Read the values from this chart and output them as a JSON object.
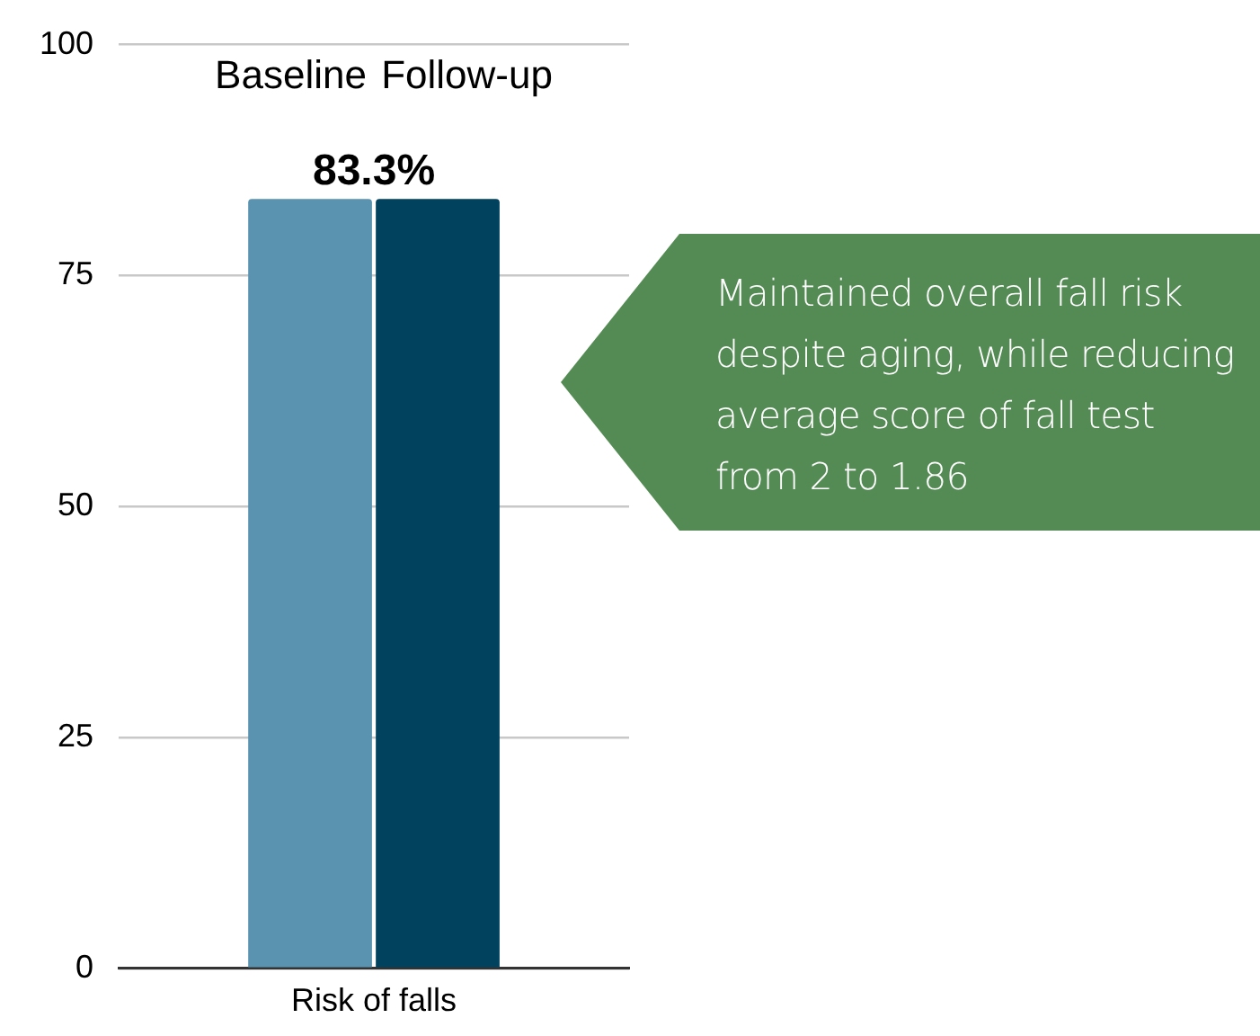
{
  "chart_data": {
    "type": "bar",
    "categories": [
      "Risk of falls"
    ],
    "series": [
      {
        "name": "Baseline",
        "color": "#5a93b0",
        "values": [
          83.3
        ]
      },
      {
        "name": "Follow-up",
        "color": "#01435f",
        "values": [
          83.3
        ]
      }
    ],
    "ylim": [
      0,
      100
    ],
    "yticks": [
      0,
      25,
      50,
      75,
      100
    ],
    "grid": "y",
    "legend": false,
    "annotations": [
      {
        "text": "83.3%",
        "x": "Risk of falls",
        "y": 83.3
      },
      "Maintained overall fall risk despite aging, while reducing average score of fall test from 2 to 1.86"
    ]
  }
}
